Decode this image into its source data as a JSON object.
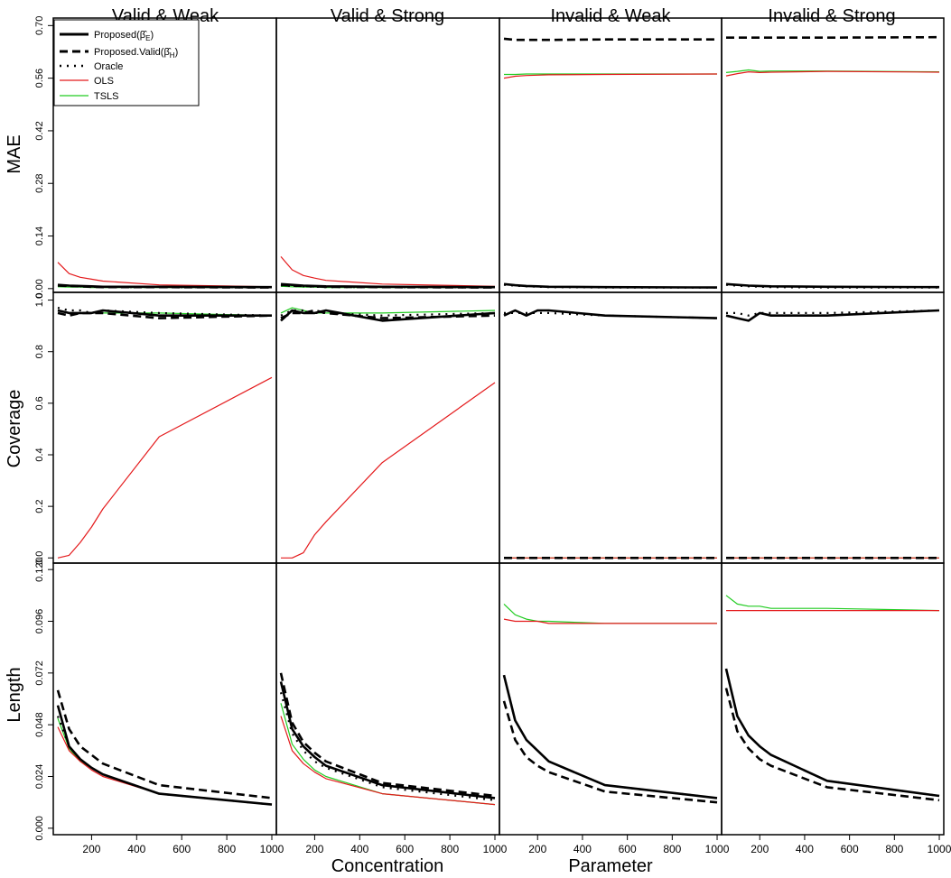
{
  "figure": {
    "col_titles": [
      "Valid & Weak",
      "Valid & Strong",
      "Invalid & Weak",
      "Invalid & Strong"
    ],
    "row_titles": [
      "MAE",
      "Coverage",
      "Length"
    ],
    "xlabel_left": "Concentration",
    "xlabel_right": "Parameter"
  },
  "legend": {
    "items": [
      {
        "label": "Proposed(β̂E)",
        "style": "solid-bold"
      },
      {
        "label": "Proposed.Valid(β̂H)",
        "style": "dashed-bold"
      },
      {
        "label": "Oracle",
        "style": "dotted"
      },
      {
        "label": "OLS",
        "style": "red"
      },
      {
        "label": "TSLS",
        "style": "green"
      }
    ]
  },
  "colors": {
    "proposed": "#000000",
    "valid": "#000000",
    "oracle": "#000000",
    "ols": "#e41a1c",
    "tsls": "#22cc22"
  },
  "chart_data": {
    "type": "line",
    "x": [
      50,
      100,
      150,
      200,
      250,
      500,
      1000
    ],
    "x_ticks": [
      200,
      400,
      600,
      800,
      1000
    ],
    "xlim": [
      30,
      1020
    ],
    "rows": [
      {
        "name": "MAE",
        "ylim": [
          -0.01,
          0.72
        ],
        "y_ticks": [
          "0.00",
          "0.14",
          "0.28",
          "0.42",
          "0.56",
          "0.70"
        ],
        "panels": [
          {
            "col": "Valid & Weak",
            "series": {
              "Proposed": [
                0.01,
                0.008,
                0.007,
                0.006,
                0.005,
                0.005,
                0.004
              ],
              "Proposed.Valid": [
                0.008,
                0.007,
                0.006,
                0.005,
                0.004,
                0.004,
                0.003
              ],
              "Oracle": [
                0.009,
                0.007,
                0.006,
                0.005,
                0.004,
                0.004,
                0.003
              ],
              "OLS": [
                0.07,
                0.04,
                0.03,
                0.025,
                0.02,
                0.01,
                0.005
              ],
              "TSLS": [
                0.005,
                0.004,
                0.004,
                0.003,
                0.003,
                0.003,
                0.003
              ]
            }
          },
          {
            "col": "Valid & Strong",
            "series": {
              "Proposed": [
                0.012,
                0.01,
                0.008,
                0.007,
                0.006,
                0.005,
                0.004
              ],
              "Proposed.Valid": [
                0.01,
                0.008,
                0.007,
                0.006,
                0.005,
                0.004,
                0.003
              ],
              "Oracle": [
                0.009,
                0.007,
                0.006,
                0.005,
                0.004,
                0.004,
                0.003
              ],
              "OLS": [
                0.085,
                0.05,
                0.035,
                0.028,
                0.022,
                0.012,
                0.006
              ],
              "TSLS": [
                0.006,
                0.005,
                0.004,
                0.004,
                0.003,
                0.003,
                0.003
              ]
            }
          },
          {
            "col": "Invalid & Weak",
            "series": {
              "Proposed": [
                0.012,
                0.009,
                0.007,
                0.006,
                0.005,
                0.004,
                0.003
              ],
              "Proposed.Valid": [
                0.665,
                0.662,
                0.662,
                0.662,
                0.662,
                0.663,
                0.663
              ],
              "Oracle": [
                0.01,
                0.008,
                0.006,
                0.005,
                0.004,
                0.003,
                0.003
              ],
              "OLS": [
                0.56,
                0.565,
                0.567,
                0.568,
                0.569,
                0.57,
                0.571
              ],
              "TSLS": [
                0.57,
                0.57,
                0.571,
                0.571,
                0.571,
                0.571,
                0.571
              ]
            }
          },
          {
            "col": "Invalid & Strong",
            "series": {
              "Proposed": [
                0.012,
                0.01,
                0.008,
                0.007,
                0.006,
                0.005,
                0.004
              ],
              "Proposed.Valid": [
                0.668,
                0.668,
                0.668,
                0.668,
                0.668,
                0.668,
                0.669
              ],
              "Oracle": [
                0.01,
                0.008,
                0.006,
                0.005,
                0.004,
                0.003,
                0.003
              ],
              "OLS": [
                0.566,
                0.572,
                0.577,
                0.575,
                0.576,
                0.578,
                0.576
              ],
              "TSLS": [
                0.575,
                0.578,
                0.582,
                0.578,
                0.579,
                0.579,
                0.577
              ]
            }
          }
        ]
      },
      {
        "name": "Coverage",
        "ylim": [
          -0.02,
          1.03
        ],
        "y_ticks": [
          "0.0",
          "0.2",
          "0.4",
          "0.6",
          "0.8",
          "1.0"
        ],
        "panels": [
          {
            "col": "Valid & Weak",
            "series": {
              "Proposed": [
                0.96,
                0.95,
                0.95,
                0.95,
                0.96,
                0.94,
                0.94
              ],
              "Proposed.Valid": [
                0.95,
                0.94,
                0.95,
                0.95,
                0.95,
                0.93,
                0.94
              ],
              "Oracle": [
                0.97,
                0.96,
                0.96,
                0.95,
                0.96,
                0.95,
                0.94
              ],
              "OLS": [
                0.0,
                0.01,
                0.06,
                0.12,
                0.19,
                0.47,
                0.7
              ],
              "TSLS": [
                0.96,
                0.95,
                0.95,
                0.95,
                0.95,
                0.95,
                0.94
              ]
            }
          },
          {
            "col": "Valid & Strong",
            "series": {
              "Proposed": [
                0.92,
                0.96,
                0.95,
                0.95,
                0.96,
                0.92,
                0.95
              ],
              "Proposed.Valid": [
                0.93,
                0.95,
                0.95,
                0.96,
                0.95,
                0.93,
                0.94
              ],
              "Oracle": [
                0.94,
                0.96,
                0.96,
                0.95,
                0.95,
                0.94,
                0.95
              ],
              "OLS": [
                0.0,
                0.0,
                0.02,
                0.09,
                0.14,
                0.37,
                0.68
              ],
              "TSLS": [
                0.95,
                0.97,
                0.96,
                0.95,
                0.95,
                0.95,
                0.96
              ]
            }
          },
          {
            "col": "Invalid & Weak",
            "series": {
              "Proposed": [
                0.94,
                0.96,
                0.94,
                0.96,
                0.96,
                0.94,
                0.93
              ],
              "Proposed.Valid": [
                0.0,
                0.0,
                0.0,
                0.0,
                0.0,
                0.0,
                0.0
              ],
              "Oracle": [
                0.95,
                0.95,
                0.95,
                0.95,
                0.95,
                0.94,
                0.93
              ],
              "OLS": [
                0.0,
                0.0,
                0.0,
                0.0,
                0.0,
                0.0,
                0.0
              ],
              "TSLS": [
                0.0,
                0.0,
                0.0,
                0.0,
                0.0,
                0.0,
                0.0
              ]
            }
          },
          {
            "col": "Invalid & Strong",
            "series": {
              "Proposed": [
                0.94,
                0.93,
                0.92,
                0.95,
                0.94,
                0.94,
                0.96
              ],
              "Proposed.Valid": [
                0.0,
                0.0,
                0.0,
                0.0,
                0.0,
                0.0,
                0.0
              ],
              "Oracle": [
                0.95,
                0.95,
                0.94,
                0.95,
                0.95,
                0.95,
                0.96
              ],
              "OLS": [
                0.0,
                0.0,
                0.0,
                0.0,
                0.0,
                0.0,
                0.0
              ],
              "TSLS": [
                0.0,
                0.0,
                0.0,
                0.0,
                0.0,
                0.0,
                0.0
              ]
            }
          }
        ]
      },
      {
        "name": "Length",
        "ylim": [
          -0.003,
          0.123
        ],
        "y_ticks": [
          "0.000",
          "0.024",
          "0.048",
          "0.072",
          "0.096",
          "0.120"
        ],
        "panels": [
          {
            "col": "Valid & Weak",
            "series": {
              "Proposed": [
                0.057,
                0.038,
                0.032,
                0.028,
                0.025,
                0.016,
                0.011
              ],
              "Proposed.Valid": [
                0.064,
                0.046,
                0.038,
                0.034,
                0.03,
                0.02,
                0.014
              ],
              "Oracle": [
                0.052,
                0.038,
                0.032,
                0.028,
                0.025,
                0.016,
                0.011
              ],
              "OLS": [
                0.047,
                0.036,
                0.031,
                0.027,
                0.024,
                0.016,
                0.011
              ],
              "TSLS": [
                0.051,
                0.037,
                0.031,
                0.028,
                0.025,
                0.016,
                0.011
              ]
            }
          },
          {
            "col": "Valid & Strong",
            "series": {
              "Proposed": [
                0.068,
                0.046,
                0.038,
                0.033,
                0.029,
                0.02,
                0.014
              ],
              "Proposed.Valid": [
                0.072,
                0.049,
                0.04,
                0.035,
                0.031,
                0.021,
                0.015
              ],
              "Oracle": [
                0.063,
                0.044,
                0.036,
                0.031,
                0.028,
                0.019,
                0.013
              ],
              "OLS": [
                0.052,
                0.036,
                0.03,
                0.026,
                0.023,
                0.016,
                0.011
              ],
              "TSLS": [
                0.058,
                0.039,
                0.032,
                0.027,
                0.024,
                0.016,
                0.011
              ]
            }
          },
          {
            "col": "Invalid & Weak",
            "series": {
              "Proposed": [
                0.071,
                0.05,
                0.041,
                0.036,
                0.031,
                0.02,
                0.014
              ],
              "Proposed.Valid": [
                0.059,
                0.041,
                0.033,
                0.029,
                0.026,
                0.017,
                0.012
              ],
              "Oracle": [
                0.071,
                0.05,
                0.041,
                0.036,
                0.031,
                0.02,
                0.014
              ],
              "OLS": [
                0.097,
                0.096,
                0.096,
                0.096,
                0.095,
                0.095,
                0.095
              ],
              "TSLS": [
                0.104,
                0.099,
                0.097,
                0.096,
                0.096,
                0.095,
                0.095
              ]
            }
          },
          {
            "col": "Invalid & Strong",
            "series": {
              "Proposed": [
                0.074,
                0.052,
                0.043,
                0.038,
                0.034,
                0.022,
                0.015
              ],
              "Proposed.Valid": [
                0.065,
                0.045,
                0.037,
                0.032,
                0.029,
                0.019,
                0.013
              ],
              "Oracle": [
                0.074,
                0.052,
                0.043,
                0.038,
                0.034,
                0.022,
                0.015
              ],
              "OLS": [
                0.101,
                0.101,
                0.101,
                0.101,
                0.101,
                0.101,
                0.101
              ],
              "TSLS": [
                0.108,
                0.104,
                0.103,
                0.103,
                0.102,
                0.102,
                0.101
              ]
            }
          }
        ]
      }
    ]
  }
}
